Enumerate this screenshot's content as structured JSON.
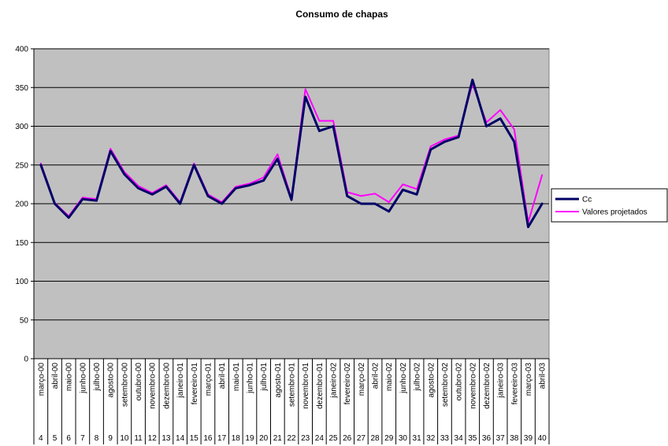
{
  "chart_data": {
    "type": "line",
    "title": "Consumo de chapas",
    "xlabel": "",
    "ylabel": "",
    "ylim": [
      0,
      400
    ],
    "y_ticks": [
      0,
      50,
      100,
      150,
      200,
      250,
      300,
      350,
      400
    ],
    "grid": true,
    "legend_position": "right",
    "plot_background": "#C0C0C0",
    "categories": [
      "março-00",
      "abril-00",
      "maio-00",
      "junho-00",
      "julho-00",
      "agosto-00",
      "setembro-00",
      "outubro-00",
      "novembro-00",
      "dezembro-00",
      "janeiro-01",
      "fevereiro-01",
      "março-01",
      "abril-01",
      "maio-01",
      "junho-01",
      "julho-01",
      "agosto-01",
      "setembro-01",
      "novembro-01",
      "dezembro-01",
      "janeiro-02",
      "fevereiro-02",
      "março-02",
      "abril-02",
      "maio-02",
      "junho-02",
      "julho-02",
      "agosto-02",
      "setembro-02",
      "outubro-02",
      "novembro-02",
      "dezembro-02",
      "janeiro-03",
      "fevereiro-03",
      "março-03",
      "abril-03"
    ],
    "category_numbers": [
      "4",
      "5",
      "6",
      "7",
      "8",
      "9",
      "10",
      "11",
      "12",
      "13",
      "14",
      "15",
      "16",
      "17",
      "18",
      "19",
      "20",
      "21",
      "22",
      "23",
      "24",
      "25",
      "26",
      "27",
      "28",
      "29",
      "30",
      "31",
      "32",
      "33",
      "34",
      "35",
      "36",
      "37",
      "38",
      "39",
      "40"
    ],
    "series": [
      {
        "name": "Cc",
        "color": "#000066",
        "values": [
          250,
          200,
          182,
          206,
          204,
          268,
          238,
          220,
          212,
          222,
          200,
          250,
          210,
          200,
          220,
          224,
          230,
          258,
          205,
          338,
          294,
          300,
          210,
          200,
          200,
          190,
          218,
          212,
          270,
          280,
          286,
          360,
          300,
          310,
          280,
          170,
          200
        ]
      },
      {
        "name": "Valores projetados",
        "color": "#FF00FF",
        "values": [
          252,
          201,
          184,
          208,
          206,
          271,
          241,
          223,
          214,
          224,
          202,
          252,
          212,
          202,
          222,
          226,
          234,
          264,
          207,
          348,
          307,
          307,
          215,
          210,
          213,
          202,
          225,
          219,
          274,
          283,
          288,
          355,
          305,
          321,
          296,
          176,
          237
        ]
      }
    ]
  }
}
